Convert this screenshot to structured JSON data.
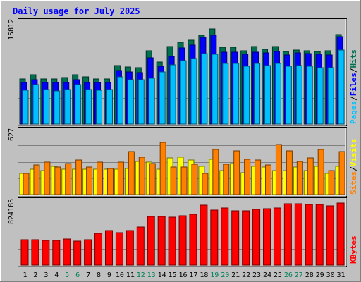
{
  "chart_data": {
    "type": "bar",
    "title": "Daily usage for July 2025",
    "categories": [
      "1",
      "2",
      "3",
      "4",
      "5",
      "6",
      "7",
      "8",
      "9",
      "10",
      "11",
      "12",
      "13",
      "14",
      "15",
      "16",
      "17",
      "18",
      "19",
      "20",
      "21",
      "22",
      "23",
      "24",
      "25",
      "26",
      "27",
      "28",
      "29",
      "30",
      "31"
    ],
    "weekend_days": [
      "5",
      "6",
      "12",
      "13",
      "19",
      "20",
      "26",
      "27"
    ],
    "panels": [
      {
        "id": "requests",
        "ymax_label": "15812",
        "ymax": 15812,
        "axis_labels": [
          "Pages",
          "Files",
          "Hits"
        ],
        "series": [
          {
            "name": "Hits",
            "color": "#007050",
            "values": [
              6900,
              7500,
              6900,
              6900,
              7100,
              7500,
              7200,
              6900,
              6900,
              8900,
              8700,
              8600,
              11200,
              9500,
              11800,
              12500,
              12800,
              13600,
              14500,
              11700,
              11700,
              11200,
              11800,
              11400,
              11800,
              11100,
              11300,
              11200,
              11100,
              11200,
              13700
            ]
          },
          {
            "name": "Files",
            "color": "#0000ff",
            "values": [
              6300,
              6800,
              6300,
              6300,
              6300,
              6800,
              6300,
              6300,
              6400,
              8200,
              8000,
              7900,
              10100,
              8800,
              10300,
              11600,
              12100,
              13200,
              13500,
              11000,
              11000,
              10600,
              11000,
              10900,
              11100,
              10500,
              10900,
              10800,
              10600,
              10500,
              13300
            ]
          },
          {
            "name": "Pages",
            "color": "#00c0ff",
            "values": [
              5200,
              6000,
              5300,
              5100,
              5300,
              6000,
              5300,
              5200,
              5300,
              7200,
              6800,
              6800,
              7000,
              8000,
              9000,
              9700,
              10000,
              10800,
              10700,
              9300,
              9300,
              8800,
              9300,
              8900,
              9300,
              8800,
              8900,
              8800,
              8600,
              8600,
              11300
            ]
          }
        ]
      },
      {
        "id": "visits",
        "ymax_label": "627",
        "ymax": 627,
        "axis_labels": [
          "Sites",
          "Visits"
        ],
        "series": [
          {
            "name": "Visits",
            "color": "#ff8000",
            "values": [
              200,
              280,
              310,
              260,
              300,
              330,
              260,
              310,
              250,
              310,
              410,
              360,
              300,
              500,
              260,
              260,
              290,
              200,
              430,
              290,
              420,
              340,
              330,
              280,
              480,
              420,
              320,
              350,
              430,
              230,
              410
            ]
          },
          {
            "name": "Sites",
            "color": "#ffff00",
            "values": [
              200,
              240,
              230,
              270,
              240,
              240,
              240,
              240,
              240,
              240,
              250,
              320,
              310,
              240,
              350,
              360,
              330,
              270,
              340,
              230,
              300,
              210,
              270,
              260,
              230,
              230,
              260,
              230,
              270,
              200,
              270
            ]
          }
        ]
      },
      {
        "id": "kbytes",
        "ymax_label": "824185",
        "ymax": 824185,
        "axis_labels": [
          "KBytes"
        ],
        "series": [
          {
            "name": "KBytes",
            "color": "#ff0000",
            "values": [
              320000,
              315000,
              310000,
              310000,
              330000,
              305000,
              320000,
              400000,
              430000,
              410000,
              430000,
              480000,
              610000,
              610000,
              600000,
              620000,
              640000,
              750000,
              690000,
              720000,
              680000,
              680000,
              700000,
              710000,
              720000,
              770000,
              770000,
              760000,
              760000,
              740000,
              780000
            ]
          }
        ]
      }
    ]
  }
}
